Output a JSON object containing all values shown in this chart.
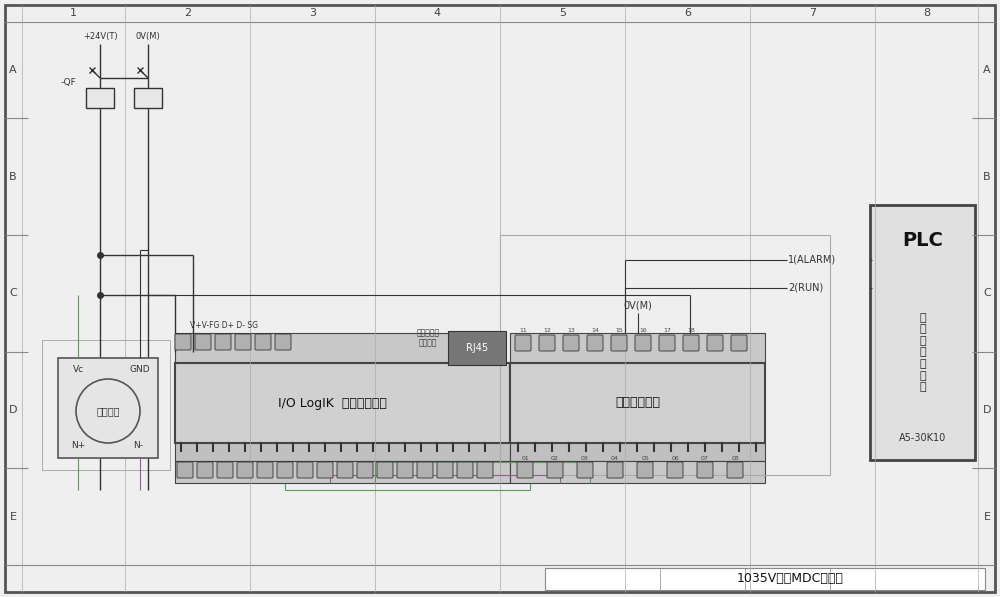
{
  "bg_color": "#efefef",
  "border_color": "#555555",
  "title_text": "1035V机床MDC接线图",
  "grid_cols": [
    "1",
    "2",
    "3",
    "4",
    "5",
    "6",
    "7",
    "8"
  ],
  "grid_rows": [
    "A",
    "B",
    "C",
    "D",
    "E"
  ],
  "power_label1": "+24V(T)",
  "power_label2": "0V(M)",
  "qf_label": "-QF",
  "sensor_box_label": "感应线圈",
  "sensor_vc": "Vc",
  "sensor_gnd": "GND",
  "sensor_n_plus": "N+",
  "sensor_n_minus": "N-",
  "io_logik_label": "I/O LogIK  智能采集终端",
  "io_top_label": "V+V-FG D+ D- SG",
  "rj45_label": "RJ45",
  "connect_label": "（连接车间\n局域网）",
  "isolation_label": "隔离保护模块",
  "ov_m_label": "0V(M)",
  "plc_title": "PLC",
  "plc_subtitle": "输\n出\n或\n继\n电\n器\n板",
  "plc_model": "A5-30K10",
  "alarm_label": "1(ALARM)",
  "run_label": "2(RUN)",
  "wire_color_green": "#5a9a5a",
  "wire_color_purple": "#9a5a9a",
  "wire_color_dark": "#333333",
  "wire_color_gray": "#888888"
}
